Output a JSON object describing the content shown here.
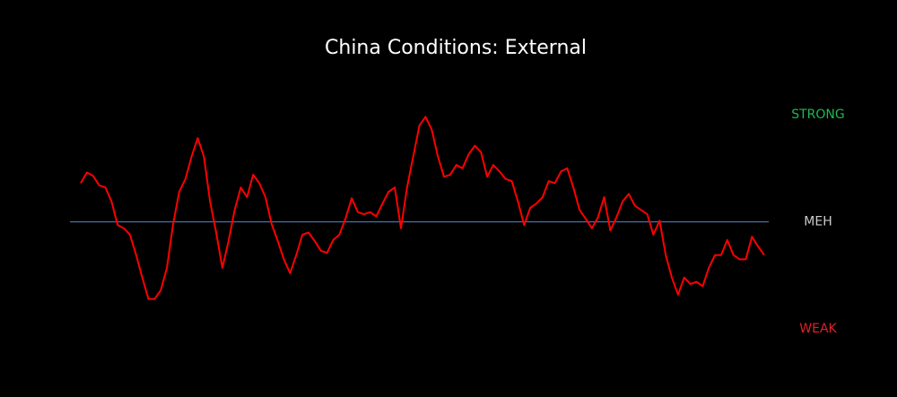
{
  "chart_data": {
    "type": "line",
    "title": "China Conditions: External",
    "values": [
      0.36,
      0.46,
      0.43,
      0.34,
      0.32,
      0.19,
      -0.03,
      -0.06,
      -0.12,
      -0.31,
      -0.52,
      -0.72,
      -0.72,
      -0.64,
      -0.43,
      -0.02,
      0.28,
      0.4,
      0.61,
      0.78,
      0.61,
      0.19,
      -0.1,
      -0.43,
      -0.18,
      0.11,
      0.32,
      0.23,
      0.44,
      0.36,
      0.23,
      -0.02,
      -0.18,
      -0.35,
      -0.48,
      -0.31,
      -0.12,
      -0.1,
      -0.18,
      -0.27,
      -0.29,
      -0.17,
      -0.12,
      0.03,
      0.22,
      0.09,
      0.07,
      0.09,
      0.05,
      0.17,
      0.28,
      0.32,
      -0.06,
      0.32,
      0.61,
      0.9,
      0.98,
      0.86,
      0.61,
      0.42,
      0.44,
      0.53,
      0.5,
      0.63,
      0.71,
      0.65,
      0.42,
      0.53,
      0.47,
      0.4,
      0.38,
      0.19,
      -0.03,
      0.13,
      0.17,
      0.23,
      0.38,
      0.36,
      0.47,
      0.5,
      0.32,
      0.11,
      0.03,
      -0.06,
      0.04,
      0.23,
      -0.08,
      0.04,
      0.19,
      0.26,
      0.15,
      0.11,
      0.07,
      -0.12,
      0.01,
      -0.31,
      -0.52,
      -0.68,
      -0.52,
      -0.58,
      -0.56,
      -0.6,
      -0.43,
      -0.31,
      -0.31,
      -0.17,
      -0.31,
      -0.35,
      -0.35,
      -0.14,
      -0.23,
      -0.31
    ],
    "color": "#ff0000",
    "ylim": [
      -1.2,
      1.2
    ],
    "yticks": [
      {
        "value": 1,
        "label": "STRONG"
      },
      {
        "value": 0,
        "label": "MEH"
      },
      {
        "value": -1,
        "label": "WEAK"
      }
    ],
    "ytick_colors": [
      "#1db954",
      "#cccccc",
      "#e0202a"
    ],
    "baseline_color": "#4a6fb5"
  }
}
